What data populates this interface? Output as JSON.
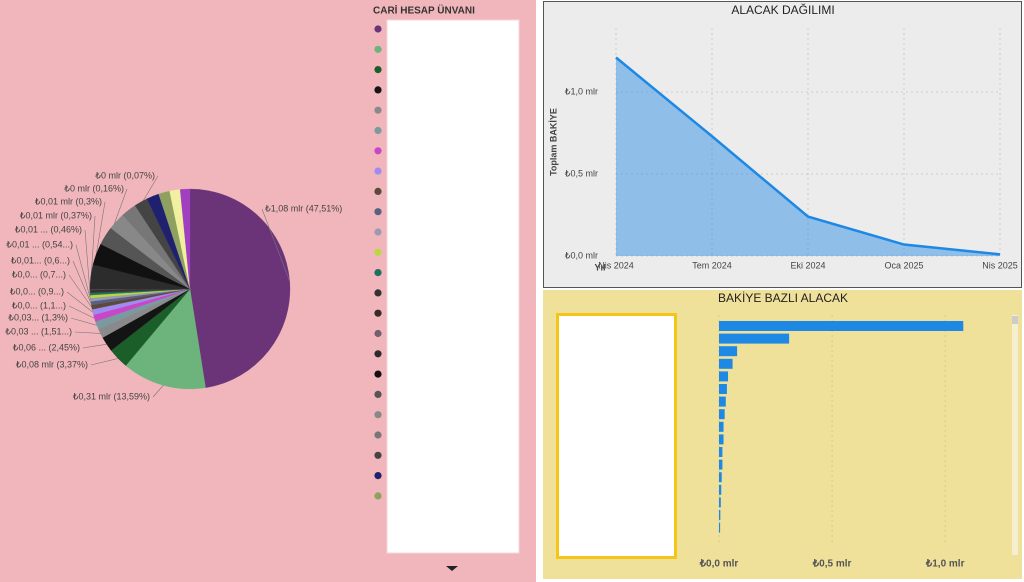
{
  "chart_data": [
    {
      "type": "pie",
      "legend_title": "CARİ HESAP ÜNVANI",
      "categories": [
        null,
        null,
        null,
        null,
        null,
        null,
        null,
        null,
        null,
        null,
        null,
        null,
        null,
        null,
        null,
        null,
        null,
        null,
        null,
        null,
        null,
        null,
        null,
        null,
        null,
        null
      ],
      "values": [
        47.51,
        13.59,
        3.37,
        2.45,
        1.51,
        1.3,
        1.1,
        0.9,
        0.7,
        0.6,
        0.54,
        0.46,
        0.37,
        0.3,
        0.16,
        0.07,
        4,
        3.5,
        3,
        2.8,
        2.5,
        2.2,
        2,
        1.8,
        1.7,
        1.57
      ],
      "value_labels": [
        "₺1,08 mlr (47,51%)",
        "₺0,31 mlr (13,59%)",
        "₺0,08 mlr (3,37%)",
        "₺0,06 ... (2,45%)",
        "₺0,03 ... (1,51...)",
        "₺0,03... (1,3%)",
        "₺0,0... (1,1...)",
        "₺0,0... (0,9...)",
        "₺0,0... (0,7...)",
        "₺0,01... (0,6...)",
        "₺0,01 ... (0,54...)",
        "₺0,01 ... (0,46%)",
        "₺0,01 mlr (0,37%)",
        "₺0,01 mlr (0,3%)",
        "₺0 mlr (0,16%)",
        "₺0 mlr (0,07%)",
        null,
        null,
        null,
        null,
        null,
        null,
        null,
        null,
        null,
        null
      ],
      "colors": [
        "#6b3478",
        "#6db37c",
        "#1b5e2a",
        "#141414",
        "#8a8a8a",
        "#7a9aa0",
        "#c847c8",
        "#a08cf0",
        "#5b4a3a",
        "#5a6080",
        "#9a9ab0",
        "#b8d840",
        "#207060",
        "#333333",
        "#3a2a2a",
        "#706070",
        "#2c2c2c",
        "#111111",
        "#555555",
        "#888888",
        "#777777",
        "#444444",
        "#202070",
        "#90a060",
        "#f0f0a0",
        "#a040c0"
      ]
    },
    {
      "type": "area",
      "title": "ALACAK DAĞILIMI",
      "x_label": "Yıl",
      "y_label": "Toplam BAKİYE",
      "categories": [
        "Nis 2024",
        "Tem 2024",
        "Eki 2024",
        "Oca 2025",
        "Nis 2025"
      ],
      "values": [
        1.21,
        0.73,
        0.24,
        0.07,
        0.01
      ],
      "color": "#1e88e5",
      "ylim": [
        0,
        1.39
      ],
      "yticks": [
        {
          "value": 0,
          "label": "₺0,0 mlr"
        },
        {
          "value": 0.5,
          "label": "₺0,5 mlr"
        },
        {
          "value": 1,
          "label": "₺1,0 mlr"
        }
      ],
      "grid": true
    },
    {
      "type": "hbar",
      "title": "BAKİYE BAZLI ALACAK",
      "categories": [
        null,
        null,
        null,
        null,
        null,
        null,
        null,
        null,
        null,
        null,
        null,
        null,
        null,
        null,
        null,
        null,
        null
      ],
      "values": [
        1.08,
        0.31,
        0.08,
        0.06,
        0.04,
        0.035,
        0.03,
        0.025,
        0.02,
        0.02,
        0.015,
        0.015,
        0.012,
        0.01,
        0.008,
        0.006,
        0.005
      ],
      "color": "#1e88e5",
      "xlim": [
        0,
        1.26
      ],
      "xticks": [
        {
          "value": 0,
          "label": "₺0,0 mlr"
        },
        {
          "value": 0.5,
          "label": "₺0,5 mlr"
        },
        {
          "value": 1,
          "label": "₺1,0 mlr"
        }
      ],
      "grid": true
    }
  ]
}
